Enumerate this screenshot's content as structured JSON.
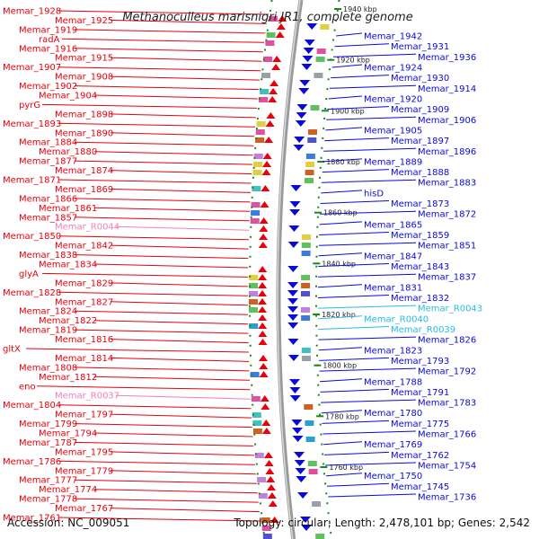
{
  "header": {
    "title": "Methanoculleus marisnigri JR1, complete genome"
  },
  "footer": {
    "accession": "Accession: NC_009051",
    "summary": "Topology: circular; Length: 2,478,101 bp; Genes: 2,542"
  },
  "colors": {
    "left_gene": "#e8000b",
    "left_rna": "#f080b8",
    "right_gene": "#0a0ad8",
    "right_rna": "#27bce0",
    "tick": "#1a8a1a",
    "backbone": "#888888"
  },
  "kbp_markers": [
    "1940 kbp",
    "1920 kbp",
    "1900 kbp",
    "1880 kbp",
    "1860 kbp",
    "1840 kbp",
    "1820 kbp",
    "1800 kbp",
    "1780 kbp",
    "1760 kbp"
  ],
  "left_labels": [
    {
      "text": "Memar_1928",
      "kind": "gene"
    },
    {
      "text": "Memar_1925",
      "kind": "gene"
    },
    {
      "text": "Memar_1919",
      "kind": "gene"
    },
    {
      "text": "radA",
      "kind": "gene"
    },
    {
      "text": "Memar_1916",
      "kind": "gene"
    },
    {
      "text": "Memar_1915",
      "kind": "gene"
    },
    {
      "text": "Memar_1907",
      "kind": "gene"
    },
    {
      "text": "Memar_1908",
      "kind": "gene"
    },
    {
      "text": "Memar_1902",
      "kind": "gene"
    },
    {
      "text": "Memar_1904",
      "kind": "gene"
    },
    {
      "text": "pyrG",
      "kind": "gene"
    },
    {
      "text": "Memar_1898",
      "kind": "gene"
    },
    {
      "text": "Memar_1893",
      "kind": "gene"
    },
    {
      "text": "Memar_1890",
      "kind": "gene"
    },
    {
      "text": "Memar_1884",
      "kind": "gene"
    },
    {
      "text": "Memar_1880",
      "kind": "gene"
    },
    {
      "text": "Memar_1877",
      "kind": "gene"
    },
    {
      "text": "Memar_1874",
      "kind": "gene"
    },
    {
      "text": "Memar_1871",
      "kind": "gene"
    },
    {
      "text": "Memar_1869",
      "kind": "gene"
    },
    {
      "text": "Memar_1866",
      "kind": "gene"
    },
    {
      "text": "Memar_1861",
      "kind": "gene"
    },
    {
      "text": "Memar_1857",
      "kind": "gene"
    },
    {
      "text": "Memar_R0044",
      "kind": "rna"
    },
    {
      "text": "Memar_1850",
      "kind": "gene"
    },
    {
      "text": "Memar_1842",
      "kind": "gene"
    },
    {
      "text": "Memar_1838",
      "kind": "gene"
    },
    {
      "text": "Memar_1834",
      "kind": "gene"
    },
    {
      "text": "glyA",
      "kind": "gene"
    },
    {
      "text": "Memar_1829",
      "kind": "gene"
    },
    {
      "text": "Memar_1828",
      "kind": "gene"
    },
    {
      "text": "Memar_1827",
      "kind": "gene"
    },
    {
      "text": "Memar_1824",
      "kind": "gene"
    },
    {
      "text": "Memar_1822",
      "kind": "gene"
    },
    {
      "text": "Memar_1819",
      "kind": "gene"
    },
    {
      "text": "Memar_1816",
      "kind": "gene"
    },
    {
      "text": "gltX",
      "kind": "gene"
    },
    {
      "text": "Memar_1814",
      "kind": "gene"
    },
    {
      "text": "Memar_1808",
      "kind": "gene"
    },
    {
      "text": "Memar_1812",
      "kind": "gene"
    },
    {
      "text": "eno",
      "kind": "gene"
    },
    {
      "text": "Memar_R0037",
      "kind": "rna"
    },
    {
      "text": "Memar_1804",
      "kind": "gene"
    },
    {
      "text": "Memar_1797",
      "kind": "gene"
    },
    {
      "text": "Memar_1799",
      "kind": "gene"
    },
    {
      "text": "Memar_1794",
      "kind": "gene"
    },
    {
      "text": "Memar_1787",
      "kind": "gene"
    },
    {
      "text": "Memar_1795",
      "kind": "gene"
    },
    {
      "text": "Memar_1786",
      "kind": "gene"
    },
    {
      "text": "Memar_1779",
      "kind": "gene"
    },
    {
      "text": "Memar_1777",
      "kind": "gene"
    },
    {
      "text": "Memar_1774",
      "kind": "gene"
    },
    {
      "text": "Memar_1778",
      "kind": "gene"
    },
    {
      "text": "Memar_1767",
      "kind": "gene"
    },
    {
      "text": "Memar_1761",
      "kind": "gene"
    }
  ],
  "right_labels": [
    {
      "text": "Memar_1942",
      "kind": "gene"
    },
    {
      "text": "Memar_1931",
      "kind": "gene"
    },
    {
      "text": "Memar_1936",
      "kind": "gene"
    },
    {
      "text": "Memar_1924",
      "kind": "gene"
    },
    {
      "text": "Memar_1930",
      "kind": "gene"
    },
    {
      "text": "Memar_1914",
      "kind": "gene"
    },
    {
      "text": "Memar_1920",
      "kind": "gene"
    },
    {
      "text": "Memar_1909",
      "kind": "gene"
    },
    {
      "text": "Memar_1906",
      "kind": "gene"
    },
    {
      "text": "Memar_1905",
      "kind": "gene"
    },
    {
      "text": "Memar_1897",
      "kind": "gene"
    },
    {
      "text": "Memar_1896",
      "kind": "gene"
    },
    {
      "text": "Memar_1889",
      "kind": "gene"
    },
    {
      "text": "Memar_1888",
      "kind": "gene"
    },
    {
      "text": "Memar_1883",
      "kind": "gene"
    },
    {
      "text": "hisD",
      "kind": "gene"
    },
    {
      "text": "Memar_1873",
      "kind": "gene"
    },
    {
      "text": "Memar_1872",
      "kind": "gene"
    },
    {
      "text": "Memar_1865",
      "kind": "gene"
    },
    {
      "text": "Memar_1859",
      "kind": "gene"
    },
    {
      "text": "Memar_1851",
      "kind": "gene"
    },
    {
      "text": "Memar_1847",
      "kind": "gene"
    },
    {
      "text": "Memar_1843",
      "kind": "gene"
    },
    {
      "text": "Memar_1837",
      "kind": "gene"
    },
    {
      "text": "Memar_1831",
      "kind": "gene"
    },
    {
      "text": "Memar_1832",
      "kind": "gene"
    },
    {
      "text": "Memar_R0043",
      "kind": "rna"
    },
    {
      "text": "Memar_R0040",
      "kind": "rna"
    },
    {
      "text": "Memar_R0039",
      "kind": "rna"
    },
    {
      "text": "Memar_1826",
      "kind": "gene"
    },
    {
      "text": "Memar_1823",
      "kind": "gene"
    },
    {
      "text": "Memar_1793",
      "kind": "gene"
    },
    {
      "text": "Memar_1792",
      "kind": "gene"
    },
    {
      "text": "Memar_1788",
      "kind": "gene"
    },
    {
      "text": "Memar_1791",
      "kind": "gene"
    },
    {
      "text": "Memar_1783",
      "kind": "gene"
    },
    {
      "text": "Memar_1780",
      "kind": "gene"
    },
    {
      "text": "Memar_1775",
      "kind": "gene"
    },
    {
      "text": "Memar_1766",
      "kind": "gene"
    },
    {
      "text": "Memar_1769",
      "kind": "gene"
    },
    {
      "text": "Memar_1762",
      "kind": "gene"
    },
    {
      "text": "Memar_1754",
      "kind": "gene"
    },
    {
      "text": "Memar_1750",
      "kind": "gene"
    },
    {
      "text": "Memar_1745",
      "kind": "gene"
    },
    {
      "text": "Memar_1736",
      "kind": "gene"
    }
  ]
}
